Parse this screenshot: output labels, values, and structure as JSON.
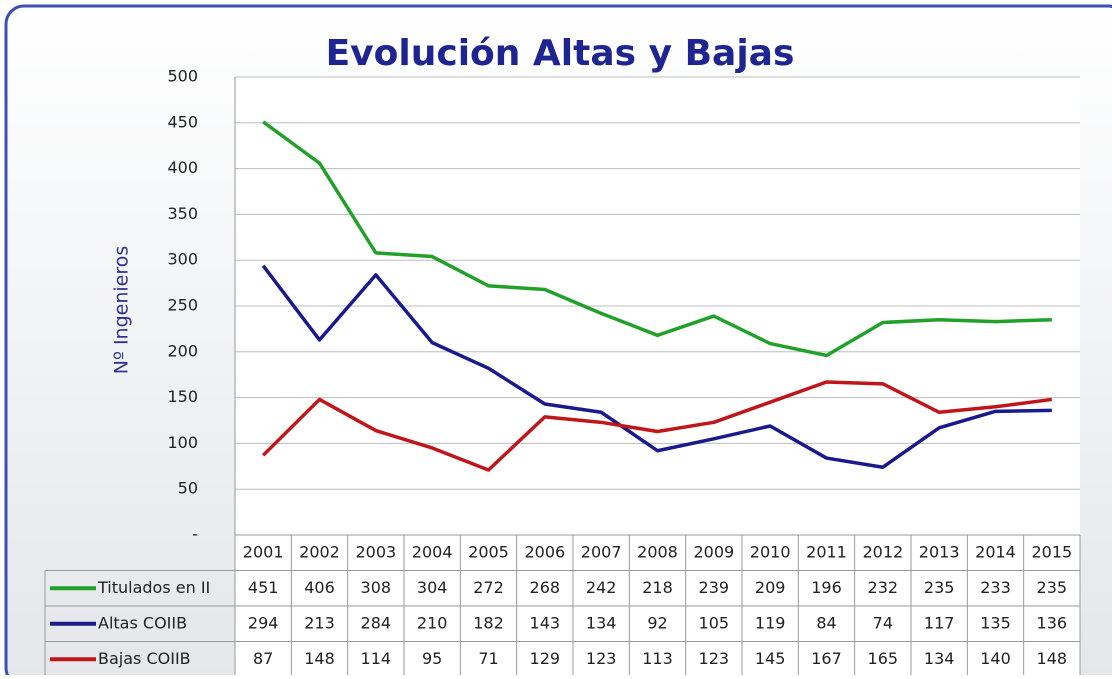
{
  "chart_data": {
    "type": "line",
    "title": "Evolución Altas y Bajas",
    "y_label": "Nº Ingenieros",
    "categories": [
      "2001",
      "2002",
      "2003",
      "2004",
      "2005",
      "2006",
      "2007",
      "2008",
      "2009",
      "2010",
      "2011",
      "2012",
      "2013",
      "2014",
      "2015"
    ],
    "series": [
      {
        "name": "Titulados en II",
        "color": "#22a12a",
        "values": [
          451,
          406,
          308,
          304,
          272,
          268,
          242,
          218,
          239,
          209,
          196,
          232,
          235,
          233,
          235
        ]
      },
      {
        "name": "Altas COIIB",
        "color": "#1a1a8c",
        "values": [
          294,
          213,
          284,
          210,
          182,
          143,
          134,
          92,
          105,
          119,
          84,
          74,
          117,
          135,
          136
        ]
      },
      {
        "name": "Bajas COIIB",
        "color": "#c0161b",
        "values": [
          87,
          148,
          114,
          95,
          71,
          129,
          123,
          113,
          123,
          145,
          167,
          165,
          134,
          140,
          148
        ]
      }
    ],
    "ylim": [
      0,
      500
    ],
    "yticks": [
      {
        "value": 0,
        "label": "-"
      },
      50,
      100,
      150,
      200,
      250,
      300,
      350,
      400,
      450,
      500
    ],
    "grid": true
  }
}
